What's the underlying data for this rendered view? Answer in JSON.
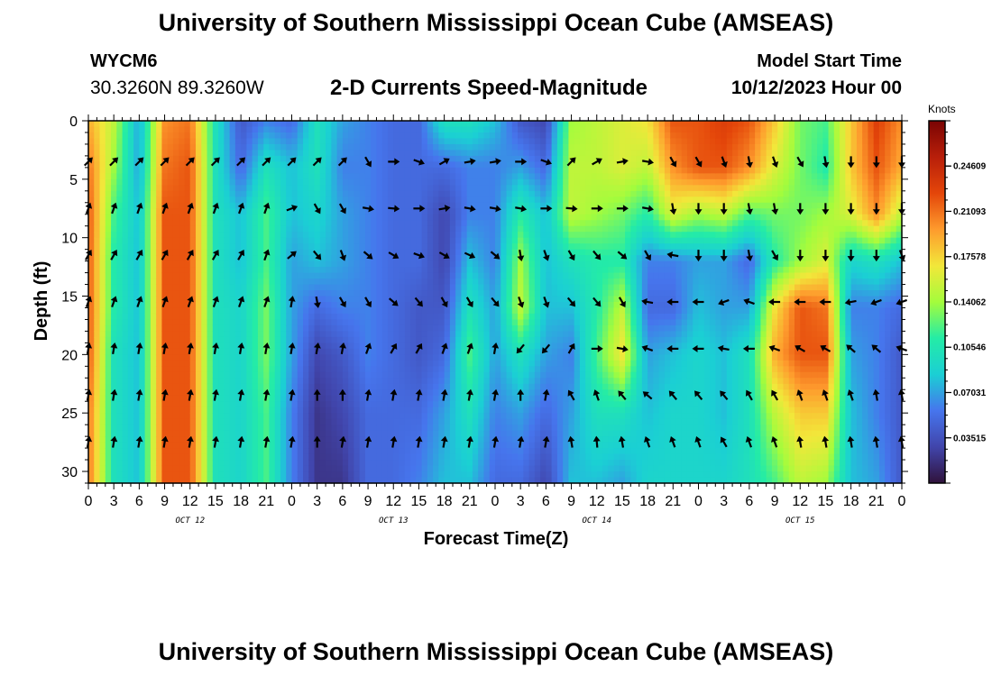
{
  "page": {
    "title": "University of Southern Mississippi Ocean Cube (AMSEAS)",
    "title_repeat": "University of Southern Mississippi Ocean Cube (AMSEAS)",
    "station_id": "WYCM6",
    "station_coords": "30.3260N  89.3260W",
    "subtitle": "2-D Currents Speed-Magnitude",
    "model_start_label": "Model Start Time",
    "model_start_value": "10/12/2023 Hour 00"
  },
  "chart_data": {
    "type": "heatmap",
    "title": "2-D Currents Speed-Magnitude",
    "xlabel": "Forecast Time(Z)",
    "ylabel": "Depth (ft)",
    "x_range_hours": [
      0,
      96
    ],
    "ylim": [
      0,
      31
    ],
    "y_inverted": true,
    "x_tick_labels": [
      "0",
      "3",
      "6",
      "9",
      "12",
      "15",
      "18",
      "21",
      "0",
      "3",
      "6",
      "9",
      "12",
      "15",
      "18",
      "21",
      "0",
      "3",
      "6",
      "9",
      "12",
      "15",
      "18",
      "21",
      "0",
      "3",
      "6",
      "9",
      "12",
      "15",
      "18",
      "21",
      "0"
    ],
    "day_labels": [
      {
        "label": "OCT 12",
        "hour": 12
      },
      {
        "label": "OCT 13",
        "hour": 36
      },
      {
        "label": "OCT 14",
        "hour": 60
      },
      {
        "label": "OCT 15",
        "hour": 84
      }
    ],
    "y_ticks": [
      0,
      5,
      10,
      15,
      20,
      25,
      30
    ],
    "y_tick_labels": [
      "0",
      "5",
      "10",
      "15",
      "20",
      "25",
      "30"
    ],
    "colorbar": {
      "units": "Knots",
      "tick_labels": [
        "0.24609",
        "0.21093",
        "0.17578",
        "0.14062",
        "0.10546",
        "0.07031",
        "0.03515"
      ],
      "tick_values": [
        0.24609,
        0.21093,
        0.17578,
        0.14062,
        0.10546,
        0.07031,
        0.03515
      ],
      "range": [
        0.0,
        0.2812
      ]
    },
    "arrow_depths": [
      3.5,
      7.5,
      11.5,
      15.5,
      19.5,
      23.5,
      27.5
    ],
    "arrow_hours": [
      0,
      3,
      6,
      9,
      12,
      15,
      18,
      21,
      24,
      27,
      30,
      33,
      36,
      39,
      42,
      45,
      48,
      51,
      54,
      57,
      60,
      63,
      66,
      69,
      72,
      75,
      78,
      81,
      84,
      87,
      90,
      93,
      96
    ],
    "speed_profile": [
      {
        "hour": 0,
        "values": [
          0.19,
          0.21,
          0.22,
          0.22,
          0.22,
          0.22,
          0.21,
          0.21
        ]
      },
      {
        "hour": 3,
        "values": [
          0.15,
          0.14,
          0.12,
          0.11,
          0.11,
          0.1,
          0.1,
          0.1
        ]
      },
      {
        "hour": 6,
        "values": [
          0.07,
          0.07,
          0.08,
          0.08,
          0.08,
          0.08,
          0.08,
          0.08
        ]
      },
      {
        "hour": 9,
        "values": [
          0.2,
          0.21,
          0.22,
          0.22,
          0.22,
          0.22,
          0.22,
          0.22
        ]
      },
      {
        "hour": 12,
        "values": [
          0.21,
          0.22,
          0.22,
          0.22,
          0.22,
          0.22,
          0.22,
          0.22
        ]
      },
      {
        "hour": 15,
        "values": [
          0.1,
          0.1,
          0.1,
          0.1,
          0.1,
          0.1,
          0.1,
          0.1
        ]
      },
      {
        "hour": 18,
        "values": [
          0.04,
          0.05,
          0.08,
          0.08,
          0.09,
          0.09,
          0.09,
          0.09
        ]
      },
      {
        "hour": 21,
        "values": [
          0.06,
          0.1,
          0.12,
          0.12,
          0.13,
          0.13,
          0.12,
          0.12
        ]
      },
      {
        "hour": 24,
        "values": [
          0.05,
          0.08,
          0.08,
          0.07,
          0.07,
          0.07,
          0.06,
          0.06
        ]
      },
      {
        "hour": 27,
        "values": [
          0.1,
          0.1,
          0.09,
          0.08,
          0.05,
          0.03,
          0.02,
          0.02
        ]
      },
      {
        "hour": 30,
        "values": [
          0.07,
          0.06,
          0.07,
          0.07,
          0.06,
          0.04,
          0.03,
          0.02
        ]
      },
      {
        "hour": 33,
        "values": [
          0.06,
          0.06,
          0.06,
          0.06,
          0.06,
          0.06,
          0.05,
          0.05
        ]
      },
      {
        "hour": 36,
        "values": [
          0.05,
          0.05,
          0.05,
          0.05,
          0.05,
          0.05,
          0.05,
          0.05
        ]
      },
      {
        "hour": 39,
        "values": [
          0.05,
          0.05,
          0.05,
          0.05,
          0.04,
          0.04,
          0.05,
          0.06
        ]
      },
      {
        "hour": 42,
        "values": [
          0.1,
          0.05,
          0.03,
          0.03,
          0.04,
          0.05,
          0.07,
          0.08
        ]
      },
      {
        "hour": 45,
        "values": [
          0.1,
          0.06,
          0.06,
          0.08,
          0.1,
          0.12,
          0.1,
          0.08
        ]
      },
      {
        "hour": 48,
        "values": [
          0.08,
          0.06,
          0.06,
          0.06,
          0.07,
          0.07,
          0.06,
          0.05
        ]
      },
      {
        "hour": 51,
        "values": [
          0.04,
          0.07,
          0.11,
          0.14,
          0.15,
          0.1,
          0.07,
          0.05
        ]
      },
      {
        "hour": 54,
        "values": [
          0.03,
          0.05,
          0.08,
          0.08,
          0.08,
          0.07,
          0.05,
          0.03
        ]
      },
      {
        "hour": 57,
        "values": [
          0.14,
          0.15,
          0.15,
          0.1,
          0.08,
          0.06,
          0.07,
          0.08
        ]
      },
      {
        "hour": 60,
        "values": [
          0.15,
          0.15,
          0.14,
          0.11,
          0.11,
          0.12,
          0.1,
          0.08
        ]
      },
      {
        "hour": 63,
        "values": [
          0.16,
          0.16,
          0.13,
          0.11,
          0.15,
          0.17,
          0.1,
          0.07
        ]
      },
      {
        "hour": 66,
        "values": [
          0.17,
          0.15,
          0.11,
          0.06,
          0.05,
          0.07,
          0.08,
          0.09
        ]
      },
      {
        "hour": 69,
        "values": [
          0.22,
          0.2,
          0.16,
          0.06,
          0.05,
          0.08,
          0.09,
          0.09
        ]
      },
      {
        "hour": 72,
        "values": [
          0.22,
          0.22,
          0.14,
          0.07,
          0.08,
          0.09,
          0.09,
          0.09
        ]
      },
      {
        "hour": 75,
        "values": [
          0.23,
          0.22,
          0.15,
          0.07,
          0.07,
          0.08,
          0.08,
          0.09
        ]
      },
      {
        "hour": 78,
        "values": [
          0.22,
          0.2,
          0.12,
          0.05,
          0.07,
          0.1,
          0.1,
          0.1
        ]
      },
      {
        "hour": 81,
        "values": [
          0.18,
          0.16,
          0.13,
          0.11,
          0.17,
          0.19,
          0.15,
          0.12
        ]
      },
      {
        "hour": 84,
        "values": [
          0.13,
          0.13,
          0.13,
          0.14,
          0.22,
          0.22,
          0.18,
          0.15
        ]
      },
      {
        "hour": 87,
        "values": [
          0.12,
          0.11,
          0.14,
          0.16,
          0.21,
          0.22,
          0.18,
          0.14
        ]
      },
      {
        "hour": 90,
        "values": [
          0.18,
          0.18,
          0.16,
          0.09,
          0.06,
          0.07,
          0.08,
          0.08
        ]
      },
      {
        "hour": 93,
        "values": [
          0.23,
          0.22,
          0.2,
          0.1,
          0.06,
          0.06,
          0.06,
          0.07
        ]
      },
      {
        "hour": 96,
        "values": [
          0.2,
          0.19,
          0.15,
          0.08,
          0.05,
          0.04,
          0.04,
          0.04
        ]
      }
    ],
    "speed_profile_depths_ft": [
      0,
      4,
      8,
      12,
      16,
      20,
      25,
      31
    ],
    "arrow_directions_deg": [
      [
        45,
        45,
        45,
        45,
        45,
        45,
        45,
        45,
        45,
        45,
        45,
        150,
        90,
        110,
        60,
        80,
        80,
        90,
        110,
        45,
        60,
        80,
        100,
        150,
        150,
        160,
        170,
        160,
        150,
        170,
        180,
        180,
        180
      ],
      [
        20,
        20,
        20,
        20,
        20,
        20,
        20,
        20,
        70,
        150,
        150,
        100,
        95,
        90,
        80,
        100,
        100,
        100,
        90,
        95,
        90,
        90,
        100,
        170,
        180,
        180,
        170,
        170,
        180,
        180,
        180,
        180,
        180
      ],
      [
        30,
        30,
        30,
        30,
        30,
        30,
        30,
        20,
        50,
        140,
        160,
        130,
        120,
        110,
        120,
        115,
        130,
        170,
        160,
        150,
        140,
        130,
        150,
        280,
        180,
        180,
        170,
        150,
        180,
        180,
        180,
        180,
        160
      ],
      [
        20,
        20,
        20,
        20,
        20,
        20,
        20,
        20,
        10,
        170,
        150,
        150,
        130,
        140,
        150,
        150,
        140,
        160,
        160,
        140,
        140,
        150,
        280,
        270,
        270,
        250,
        290,
        270,
        270,
        270,
        260,
        250,
        250
      ],
      [
        10,
        10,
        10,
        10,
        10,
        10,
        10,
        10,
        10,
        10,
        10,
        20,
        30,
        30,
        20,
        20,
        10,
        220,
        220,
        30,
        90,
        100,
        290,
        270,
        270,
        280,
        270,
        290,
        300,
        300,
        310,
        310,
        290
      ],
      [
        10,
        10,
        10,
        10,
        10,
        10,
        10,
        10,
        10,
        0,
        0,
        10,
        10,
        10,
        10,
        10,
        10,
        0,
        10,
        330,
        340,
        320,
        310,
        320,
        320,
        320,
        330,
        330,
        340,
        340,
        340,
        350,
        350
      ],
      [
        10,
        10,
        10,
        10,
        10,
        10,
        10,
        10,
        10,
        0,
        10,
        10,
        10,
        10,
        10,
        10,
        10,
        10,
        10,
        350,
        355,
        350,
        340,
        340,
        340,
        330,
        340,
        340,
        350,
        350,
        350,
        350,
        350
      ]
    ]
  }
}
